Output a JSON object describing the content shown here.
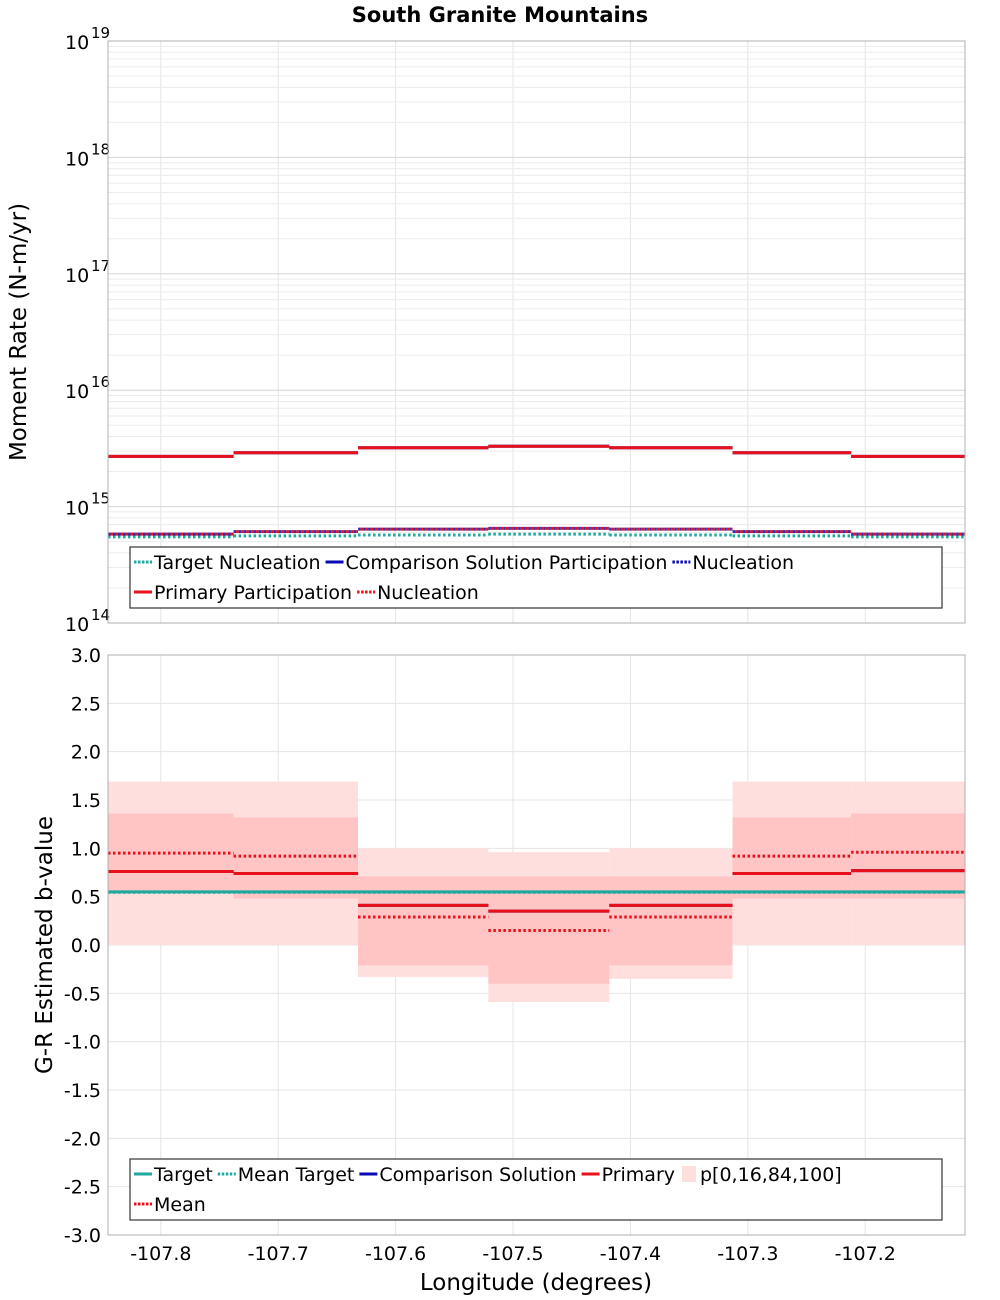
{
  "title": "South Granite Mountains",
  "xlabel": "Longitude (degrees)",
  "x_ticks": [
    "-107.8",
    "-107.7",
    "-107.6",
    "-107.5",
    "-107.4",
    "-107.3",
    "-107.2"
  ],
  "x_tick_values": [
    -107.8,
    -107.7,
    -107.6,
    -107.5,
    -107.4,
    -107.3,
    -107.2
  ],
  "colors": {
    "target": "#1fa89e",
    "comparison": "#0a0ab4",
    "primary": "#e8101a",
    "band_outer": "#ffdede",
    "band_inner": "#ffc4c4",
    "grid": "#e4e4e4",
    "axis": "#b0b0b0"
  },
  "chart_data": [
    {
      "type": "line",
      "scale": "log",
      "ylabel": "Moment Rate (N-m/yr)",
      "xlim": [
        -107.845,
        -107.115
      ],
      "ylim": [
        100000000000000.0,
        1e+19
      ],
      "y_ticks": [
        {
          "base": "10",
          "exp": "19",
          "value": 1e+19
        },
        {
          "base": "10",
          "exp": "18",
          "value": 1e+18
        },
        {
          "base": "10",
          "exp": "17",
          "value": 1e+17
        },
        {
          "base": "10",
          "exp": "16",
          "value": 1e+16
        },
        {
          "base": "10",
          "exp": "15",
          "value": 1000000000000000.0
        },
        {
          "base": "10",
          "exp": "14",
          "value": 100000000000000.0
        }
      ],
      "bin_edges": [
        -107.845,
        -107.738,
        -107.632,
        -107.521,
        -107.418,
        -107.313,
        -107.212,
        -107.115
      ],
      "series": [
        {
          "key": "target_nucleation",
          "values": [
            550000000000000.0,
            560000000000000.0,
            570000000000000.0,
            580000000000000.0,
            570000000000000.0,
            560000000000000.0,
            550000000000000.0
          ]
        },
        {
          "key": "primary_participation",
          "values": [
            2700000000000000.0,
            2900000000000000.0,
            3200000000000000.0,
            3300000000000000.0,
            3200000000000000.0,
            2900000000000000.0,
            2700000000000000.0
          ]
        },
        {
          "key": "primary_nucleation",
          "values": [
            580000000000000.0,
            610000000000000.0,
            640000000000000.0,
            650000000000000.0,
            640000000000000.0,
            610000000000000.0,
            580000000000000.0
          ]
        }
      ],
      "legend": {
        "placement": "bottom",
        "rows": [
          [
            {
              "label": "Target Nucleation",
              "color": "#1fa89e",
              "dash": "dotted"
            },
            {
              "label": "Comparison Solution Participation",
              "color": "#0a0ab4",
              "dash": "solid"
            },
            {
              "label": "Nucleation",
              "color": "#0a0ab4",
              "dash": "dotted"
            }
          ],
          [
            {
              "label": "Primary Participation",
              "color": "#e8101a",
              "dash": "solid"
            },
            {
              "label": "Nucleation",
              "color": "#e8101a",
              "dash": "dotted"
            }
          ]
        ]
      }
    },
    {
      "type": "line",
      "scale": "linear",
      "ylabel": "G-R Estimated b-value",
      "xlim": [
        -107.845,
        -107.115
      ],
      "ylim": [
        -3.0,
        3.0
      ],
      "y_ticks": [
        "3.0",
        "2.5",
        "2.0",
        "1.5",
        "1.0",
        "0.5",
        "0.0",
        "-0.5",
        "-1.0",
        "-1.5",
        "-2.0",
        "-2.5",
        "-3.0"
      ],
      "y_tick_values": [
        3.0,
        2.5,
        2.0,
        1.5,
        1.0,
        0.5,
        0.0,
        -0.5,
        -1.0,
        -1.5,
        -2.0,
        -2.5,
        -3.0
      ],
      "bin_edges": [
        -107.845,
        -107.738,
        -107.632,
        -107.521,
        -107.418,
        -107.313,
        -107.212,
        -107.115
      ],
      "target": 0.55,
      "mean_target": 0.54,
      "primary": [
        0.76,
        0.74,
        0.41,
        0.35,
        0.41,
        0.74,
        0.77
      ],
      "mean": [
        0.95,
        0.92,
        0.29,
        0.15,
        0.29,
        0.92,
        0.96
      ],
      "p0": [
        0.0,
        0.0,
        -0.33,
        -0.59,
        -0.35,
        0.0,
        0.0
      ],
      "p16": [
        0.54,
        0.48,
        -0.21,
        -0.4,
        -0.21,
        0.48,
        0.48
      ],
      "p84": [
        1.36,
        1.32,
        0.71,
        0.71,
        0.71,
        1.32,
        1.36
      ],
      "p100": [
        1.69,
        1.69,
        1.0,
        0.96,
        1.0,
        1.69,
        1.69
      ],
      "legend": {
        "placement": "bottom",
        "rows": [
          [
            {
              "label": "Target",
              "color": "#1fa89e",
              "dash": "solid"
            },
            {
              "label": "Mean Target",
              "color": "#1fa89e",
              "dash": "dotted"
            },
            {
              "label": "Comparison Solution",
              "color": "#0a0ab4",
              "dash": "solid"
            },
            {
              "label": "Primary",
              "color": "#e8101a",
              "dash": "solid"
            },
            {
              "label": "p[0,16,84,100]",
              "color": "#ffdede",
              "dash": "box"
            }
          ],
          [
            {
              "label": "Mean",
              "color": "#e8101a",
              "dash": "dotted"
            }
          ]
        ]
      }
    }
  ]
}
